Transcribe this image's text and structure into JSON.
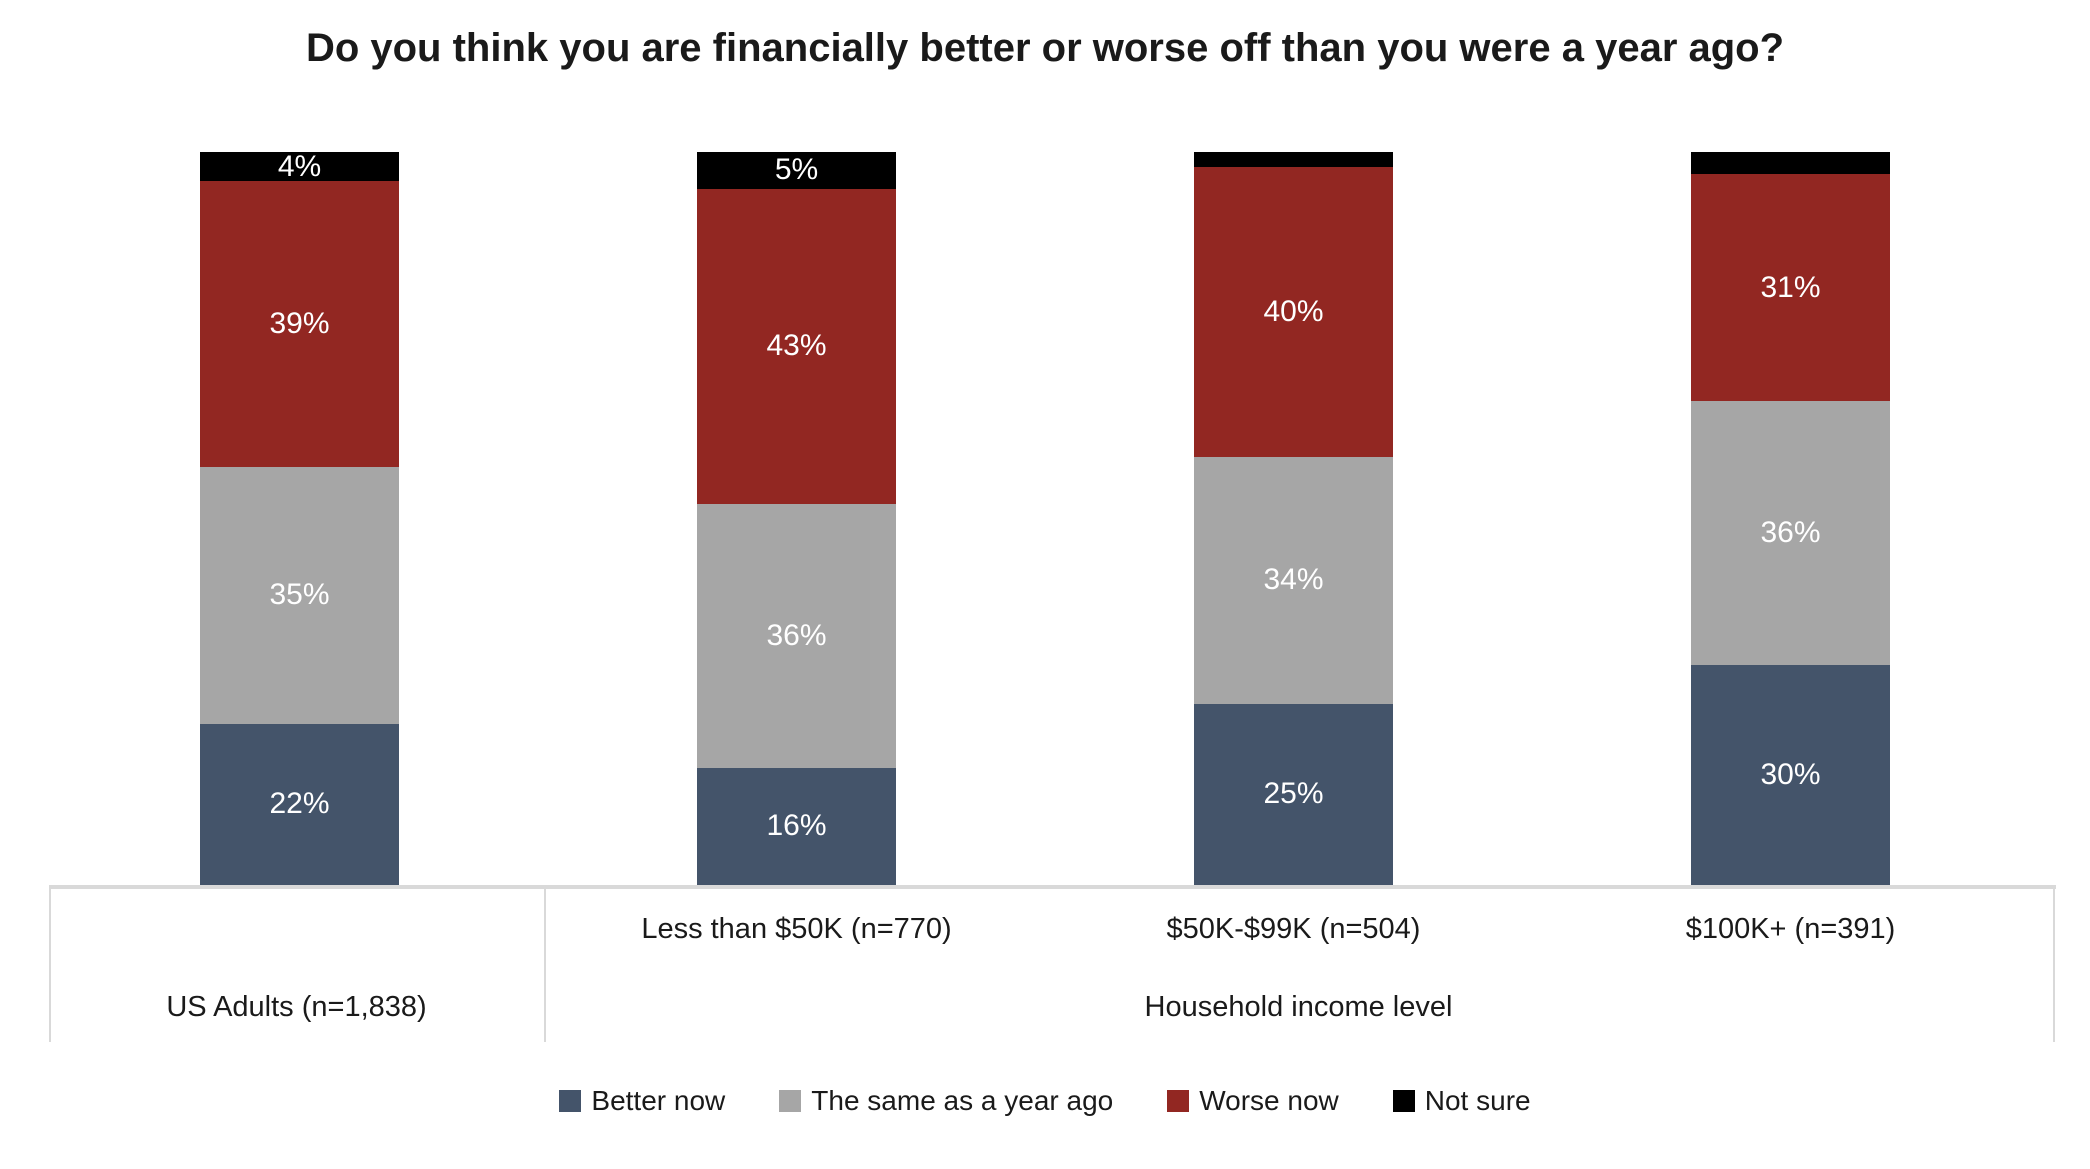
{
  "title": "Do you think you are financially better or worse off than you were a year ago?",
  "colors": {
    "better": "#44546A",
    "same": "#A6A6A6",
    "worse": "#922722",
    "not_sure": "#000000",
    "axis_line": "#D9D9D9",
    "text": "#1A1A1A",
    "data_label_text": "#FFFFFF"
  },
  "chart_data": {
    "type": "bar",
    "stacked": true,
    "orientation": "vertical",
    "units": "percent",
    "grid": false,
    "y_axis_visible": false,
    "categories": [
      "US Adults (n=1,838)",
      "Less than $50K (n=770)",
      "$50K-$99K (n=504)",
      "$100K+ (n=391)"
    ],
    "x_axis": {
      "row1_sub_labels": [
        "",
        "Less than $50K (n=770)",
        "$50K-$99K (n=504)",
        "$100K+ (n=391)"
      ],
      "row2_groups": [
        {
          "label": "US Adults (n=1,838)",
          "span": [
            0,
            0
          ]
        },
        {
          "label": "Household income level",
          "span": [
            1,
            3
          ]
        }
      ]
    },
    "series": [
      {
        "name": "Better now",
        "color_key": "better",
        "values": [
          22,
          16,
          25,
          30
        ],
        "labels": [
          "22%",
          "16%",
          "25%",
          "30%"
        ]
      },
      {
        "name": "The same as a year ago",
        "color_key": "same",
        "values": [
          35,
          36,
          34,
          36
        ],
        "labels": [
          "35%",
          "36%",
          "34%",
          "36%"
        ]
      },
      {
        "name": "Worse now",
        "color_key": "worse",
        "values": [
          39,
          43,
          40,
          31
        ],
        "labels": [
          "39%",
          "43%",
          "40%",
          "31%"
        ]
      },
      {
        "name": "Not sure",
        "color_key": "not_sure",
        "values": [
          4,
          5,
          2,
          3
        ],
        "labels": [
          "4%",
          "5%",
          "",
          ""
        ]
      }
    ],
    "legend": {
      "position": "bottom",
      "entries": [
        "Better now",
        "The same as a year ago",
        "Worse now",
        "Not sure"
      ]
    }
  }
}
